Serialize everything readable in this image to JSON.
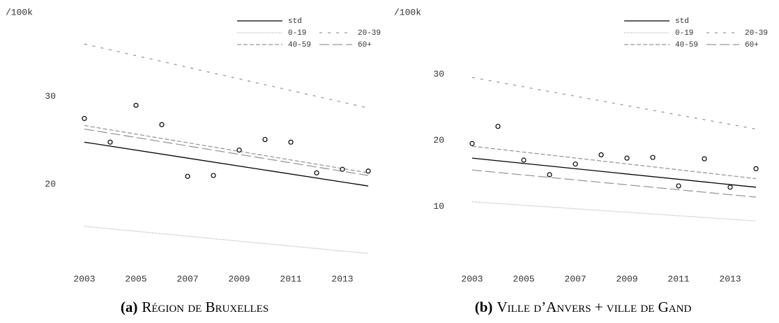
{
  "chart_data": [
    {
      "type": "line",
      "y_label": "/100k",
      "caption_label": "(a)",
      "caption": "Région de Bruxelles",
      "xlim": [
        2002.5,
        2014.5
      ],
      "xticks": [
        2003,
        2005,
        2007,
        2009,
        2011,
        2013
      ],
      "ylim": [
        11,
        38
      ],
      "yticks": [
        20,
        30
      ],
      "series": [
        {
          "name": "std",
          "color": "#000000",
          "dash": "none",
          "x": [
            2003,
            2014
          ],
          "values": [
            24.8,
            19.8
          ]
        },
        {
          "name": "0-19",
          "color": "#aaaaaa",
          "dash": "1,1.5",
          "x": [
            2003,
            2014
          ],
          "values": [
            15.2,
            12.1
          ]
        },
        {
          "name": "20-39",
          "color": "#999999",
          "dash": "4,8",
          "x": [
            2003,
            2014
          ],
          "values": [
            36.0,
            28.7
          ]
        },
        {
          "name": "40-59",
          "color": "#999999",
          "dash": "6,3",
          "x": [
            2003,
            2014
          ],
          "values": [
            26.7,
            21.3
          ]
        },
        {
          "name": "60+",
          "color": "#999999",
          "dash": "14,5",
          "x": [
            2003,
            2014
          ],
          "values": [
            26.3,
            21.0
          ]
        }
      ],
      "points": {
        "color": "#000000",
        "x": [
          2003,
          2004,
          2005,
          2006,
          2007,
          2008,
          2009,
          2010,
          2011,
          2012,
          2013,
          2014
        ],
        "values": [
          27.5,
          24.8,
          29.0,
          26.8,
          20.9,
          21.0,
          23.9,
          25.1,
          24.8,
          21.3,
          21.7,
          21.5
        ]
      }
    },
    {
      "type": "line",
      "y_label": "/100k",
      "caption_label": "(b)",
      "caption": "Ville d’Anvers + ville de Gand",
      "xlim": [
        2002.5,
        2014.5
      ],
      "xticks": [
        2003,
        2005,
        2007,
        2009,
        2011,
        2013
      ],
      "ylim": [
        3,
        37
      ],
      "yticks": [
        10,
        20,
        30
      ],
      "series": [
        {
          "name": "std",
          "color": "#000000",
          "dash": "none",
          "x": [
            2003,
            2014
          ],
          "values": [
            17.3,
            12.9
          ]
        },
        {
          "name": "0-19",
          "color": "#aaaaaa",
          "dash": "1,1.5",
          "x": [
            2003,
            2014
          ],
          "values": [
            10.7,
            7.8
          ]
        },
        {
          "name": "20-39",
          "color": "#999999",
          "dash": "4,8",
          "x": [
            2003,
            2014
          ],
          "values": [
            29.5,
            21.7
          ]
        },
        {
          "name": "40-59",
          "color": "#999999",
          "dash": "6,3",
          "x": [
            2003,
            2014
          ],
          "values": [
            19.1,
            14.2
          ]
        },
        {
          "name": "60+",
          "color": "#999999",
          "dash": "14,5",
          "x": [
            2003,
            2014
          ],
          "values": [
            15.5,
            11.4
          ]
        }
      ],
      "points": {
        "color": "#000000",
        "x": [
          2003,
          2004,
          2005,
          2006,
          2007,
          2008,
          2009,
          2010,
          2011,
          2012,
          2013,
          2014
        ],
        "values": [
          19.5,
          22.1,
          17.0,
          14.8,
          16.4,
          17.8,
          17.3,
          17.4,
          13.1,
          17.2,
          12.9,
          15.7
        ]
      }
    }
  ]
}
